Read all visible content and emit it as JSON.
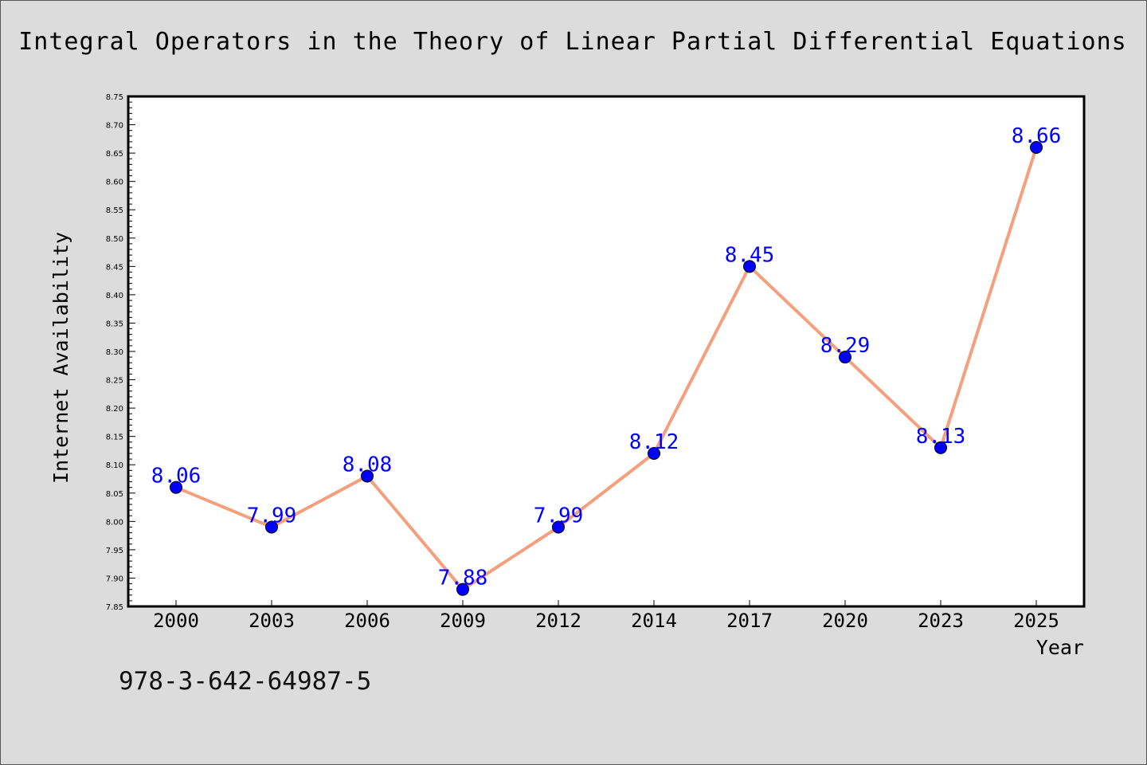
{
  "title": "Integral Operators in the Theory of Linear Partial Differential Equations",
  "footer_text": "978-3-642-64987-5",
  "colors": {
    "background": "#dcdcdc",
    "plot_background": "#ffffff",
    "line": "#f4a07e",
    "marker": "#0000ff",
    "data_label": "#0000ff"
  },
  "chart_data": {
    "type": "line",
    "xlabel": "Year",
    "ylabel": "Internet Availability",
    "categories": [
      "2000",
      "2003",
      "2006",
      "2009",
      "2012",
      "2014",
      "2017",
      "2020",
      "2023",
      "2025"
    ],
    "series": [
      {
        "values": [
          8.06,
          7.99,
          8.08,
          7.88,
          7.99,
          8.12,
          8.45,
          8.29,
          8.13,
          8.66
        ]
      }
    ],
    "data_labels": [
      "8.06",
      "7.99",
      "8.08",
      "7.88",
      "7.99",
      "8.12",
      "8.45",
      "8.29",
      "8.13",
      "8.66"
    ],
    "ylim": [
      7.85,
      8.75
    ],
    "y_ticks": [
      "7.85",
      "7.90",
      "7.95",
      "8.00",
      "8.05",
      "8.10",
      "8.15",
      "8.20",
      "8.25",
      "8.30",
      "8.35",
      "8.40",
      "8.45",
      "8.50",
      "8.55",
      "8.60",
      "8.65",
      "8.70",
      "8.75"
    ],
    "grid": false,
    "legend": false
  }
}
